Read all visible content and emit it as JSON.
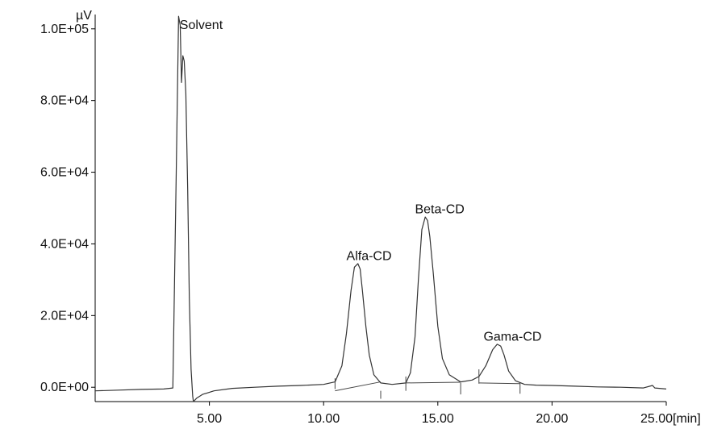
{
  "chart_data": {
    "type": "line",
    "ylabel": "µV",
    "xunit": "[min]",
    "xlim": [
      0,
      25
    ],
    "ylim": [
      -4000,
      104000
    ],
    "x_ticks": [
      5,
      10,
      15,
      20,
      25
    ],
    "x_tick_labels": [
      "5.00",
      "10.00",
      "15.00",
      "20.00",
      "25.00"
    ],
    "y_ticks": [
      0,
      20000,
      40000,
      60000,
      80000,
      100000
    ],
    "y_tick_labels": [
      "0.0E+00",
      "2.0E+04",
      "4.0E+04",
      "6.0E+04",
      "8.0E+04",
      "1.0E+05"
    ],
    "grid": false,
    "series": [
      {
        "color": "#333333",
        "x": [
          0.0,
          1.0,
          2.0,
          3.0,
          3.4,
          3.55,
          3.65,
          3.72,
          3.78,
          3.84,
          3.9,
          3.97,
          4.05,
          4.12,
          4.2,
          4.27,
          4.3,
          4.45,
          4.7,
          5.2,
          6.0,
          7.0,
          8.0,
          9.0,
          10.0,
          10.5,
          10.8,
          11.0,
          11.2,
          11.35,
          11.5,
          11.6,
          11.7,
          11.85,
          12.0,
          12.2,
          12.5,
          13.0,
          13.6,
          13.8,
          14.0,
          14.15,
          14.3,
          14.45,
          14.55,
          14.65,
          14.8,
          15.0,
          15.2,
          15.5,
          16.0,
          16.5,
          16.8,
          17.1,
          17.4,
          17.6,
          17.75,
          17.9,
          18.1,
          18.4,
          18.8,
          19.3,
          20.0,
          21.0,
          22.0,
          23.0,
          24.0,
          24.4,
          24.5,
          24.7,
          25.0
        ],
        "y": [
          -1000,
          -800,
          -600,
          -500,
          -200,
          60000,
          103500,
          101000,
          85000,
          92500,
          91000,
          82000,
          55000,
          25000,
          5000,
          -2500,
          -4000,
          -3000,
          -2000,
          -1000,
          -300,
          0,
          300,
          500,
          800,
          1500,
          6000,
          15000,
          27000,
          33500,
          34500,
          33000,
          27000,
          17000,
          9000,
          3500,
          1200,
          800,
          1200,
          4000,
          14000,
          30000,
          44000,
          47500,
          46500,
          42000,
          32000,
          17000,
          8000,
          3500,
          1500,
          2000,
          3000,
          6000,
          10500,
          12000,
          11500,
          9000,
          4500,
          1800,
          800,
          600,
          500,
          300,
          100,
          0,
          -200,
          500,
          -200,
          -300,
          -500
        ]
      }
    ],
    "baselines": [
      {
        "x": [
          10.5,
          12.5
        ],
        "y": [
          -1000,
          1500
        ]
      },
      {
        "x": [
          13.6,
          16.0
        ],
        "y": [
          1200,
          1400
        ]
      },
      {
        "x": [
          16.8,
          18.6
        ],
        "y": [
          1200,
          1000
        ]
      }
    ],
    "markers": [
      {
        "x": 10.5,
        "y_top": 2500,
        "y_bottom": -500
      },
      {
        "x": 12.5,
        "y_top": -1000,
        "y_bottom": -3200
      },
      {
        "x": 13.6,
        "y_top": 3000,
        "y_bottom": -1000
      },
      {
        "x": 16.0,
        "y_top": 1200,
        "y_bottom": -2000
      },
      {
        "x": 16.8,
        "y_top": 5000,
        "y_bottom": 1000
      },
      {
        "x": 18.6,
        "y_top": 1200,
        "y_bottom": -1800
      }
    ],
    "annotations": [
      {
        "text": "Solvent",
        "x": 3.7,
        "y": 100000
      },
      {
        "text": "Alfa-CD",
        "x": 11.0,
        "y": 35500
      },
      {
        "text": "Beta-CD",
        "x": 14.0,
        "y": 48500
      },
      {
        "text": "Gama-CD",
        "x": 17.0,
        "y": 13000
      }
    ]
  }
}
